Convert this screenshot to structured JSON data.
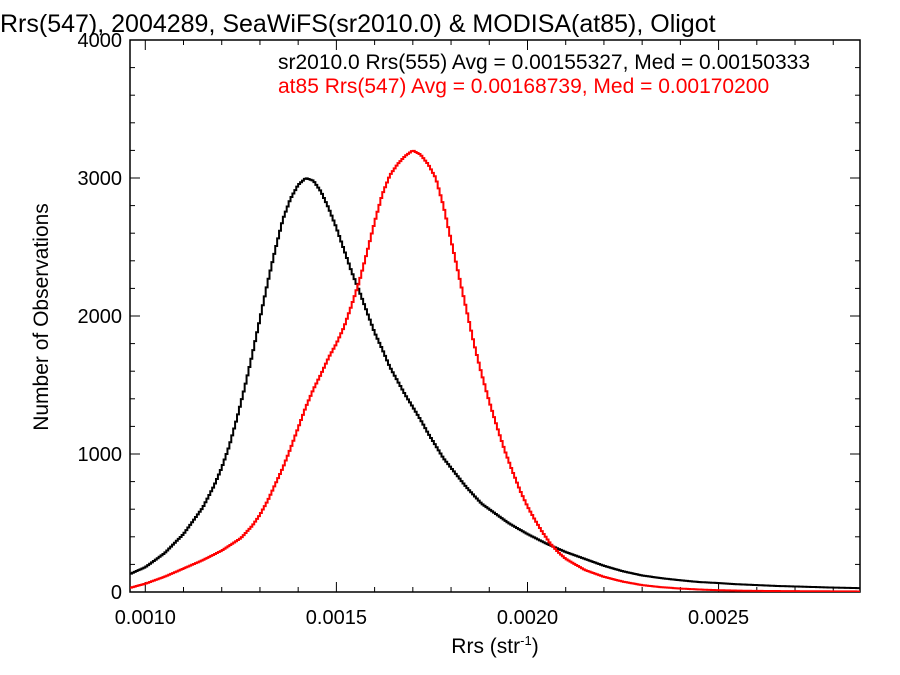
{
  "chart_data": {
    "type": "line",
    "title": "Rrs(547), 2004289, SeaWiFS(sr2010.0) & MODISA(at85), Oligot",
    "xlabel": "Rrs (str",
    "xlabel_sup": "-1",
    "xlabel_close": ")",
    "ylabel": "Number of Observations",
    "xlim": [
      0.00096,
      0.00287
    ],
    "ylim": [
      0,
      4000
    ],
    "x_ticks": [
      0.001,
      0.0015,
      0.002,
      0.0025
    ],
    "x_tick_labels": [
      "0.0010",
      "0.0015",
      "0.0020",
      "0.0025"
    ],
    "y_ticks": [
      0,
      1000,
      2000,
      3000,
      4000
    ],
    "y_tick_labels": [
      "0",
      "1000",
      "2000",
      "3000",
      "4000"
    ],
    "step": true,
    "grid": false,
    "legend_placement": "top",
    "annotations": [
      {
        "text": "sr2010.0 Rrs(555) Avg = 0.00155327, Med = 0.00150333",
        "color": "#000000"
      },
      {
        "text": "at85 Rrs(547) Avg = 0.00168739, Med = 0.00170200",
        "color": "#ff0000"
      }
    ],
    "series": [
      {
        "color": "#000000",
        "x": [
          0.00096,
          0.001,
          0.00105,
          0.0011,
          0.00115,
          0.00118,
          0.0012,
          0.00122,
          0.00124,
          0.00126,
          0.00128,
          0.0013,
          0.00132,
          0.00134,
          0.00136,
          0.00138,
          0.0014,
          0.00142,
          0.00144,
          0.00146,
          0.00148,
          0.0015,
          0.00152,
          0.00154,
          0.00156,
          0.00158,
          0.0016,
          0.00162,
          0.00164,
          0.00166,
          0.00168,
          0.0017,
          0.00172,
          0.00174,
          0.00176,
          0.00178,
          0.0018,
          0.00182,
          0.00184,
          0.00186,
          0.00188,
          0.0019,
          0.00195,
          0.002,
          0.00205,
          0.0021,
          0.00215,
          0.0022,
          0.00225,
          0.0023,
          0.00235,
          0.0024,
          0.00245,
          0.0025,
          0.00255,
          0.0026,
          0.00265,
          0.0027,
          0.00275,
          0.0028,
          0.00287
        ],
        "y": [
          130,
          180,
          280,
          420,
          610,
          770,
          900,
          1060,
          1260,
          1480,
          1720,
          1980,
          2240,
          2480,
          2700,
          2850,
          2950,
          3000,
          2980,
          2900,
          2780,
          2640,
          2480,
          2320,
          2180,
          2030,
          1880,
          1760,
          1630,
          1530,
          1430,
          1340,
          1250,
          1150,
          1060,
          970,
          900,
          830,
          760,
          700,
          640,
          600,
          500,
          420,
          350,
          290,
          240,
          190,
          150,
          120,
          100,
          85,
          72,
          65,
          56,
          50,
          44,
          40,
          36,
          32,
          28
        ]
      },
      {
        "color": "#ff0000",
        "x": [
          0.00096,
          0.001,
          0.00105,
          0.0011,
          0.00115,
          0.0012,
          0.00125,
          0.00128,
          0.0013,
          0.00132,
          0.00134,
          0.00136,
          0.00138,
          0.0014,
          0.00142,
          0.00144,
          0.00146,
          0.00148,
          0.0015,
          0.00152,
          0.00154,
          0.00156,
          0.00158,
          0.0016,
          0.00162,
          0.00164,
          0.00166,
          0.00168,
          0.0017,
          0.00172,
          0.00174,
          0.00176,
          0.00178,
          0.0018,
          0.00182,
          0.00184,
          0.00186,
          0.00188,
          0.0019,
          0.00192,
          0.00194,
          0.00196,
          0.00198,
          0.002,
          0.00202,
          0.00204,
          0.00206,
          0.00208,
          0.0021,
          0.00215,
          0.0022,
          0.00225,
          0.0023,
          0.00235,
          0.0024,
          0.00245,
          0.0025,
          0.00255,
          0.0026,
          0.0027,
          0.00287
        ],
        "y": [
          30,
          60,
          110,
          170,
          230,
          300,
          390,
          480,
          560,
          660,
          780,
          900,
          1040,
          1190,
          1340,
          1470,
          1580,
          1700,
          1800,
          1920,
          2080,
          2250,
          2460,
          2680,
          2880,
          3020,
          3100,
          3160,
          3200,
          3170,
          3100,
          3000,
          2800,
          2550,
          2300,
          2050,
          1800,
          1580,
          1380,
          1200,
          1030,
          880,
          740,
          620,
          520,
          430,
          350,
          290,
          240,
          160,
          110,
          75,
          50,
          35,
          25,
          18,
          13,
          10,
          8,
          6,
          4
        ]
      }
    ]
  }
}
